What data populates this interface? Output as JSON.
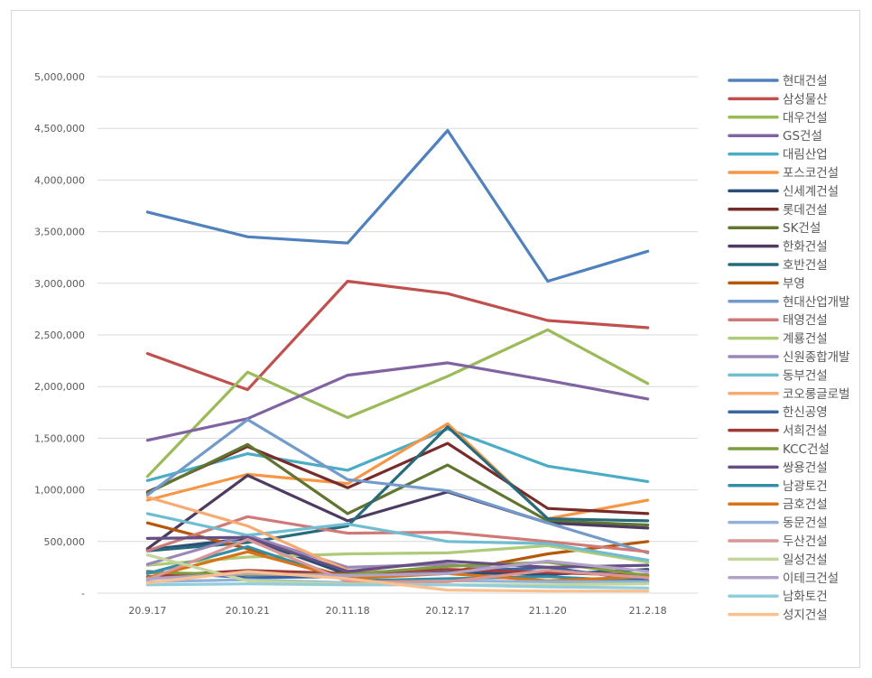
{
  "chart_data": {
    "type": "line",
    "title": "",
    "xlabel": "",
    "ylabel": "",
    "categories": [
      "20.9.17",
      "20.10.21",
      "20.11.18",
      "20.12.17",
      "21.1.20",
      "21.2.18"
    ],
    "ylim": [
      0,
      5000000
    ],
    "yticks": [
      0,
      500000,
      1000000,
      1500000,
      2000000,
      2500000,
      3000000,
      3500000,
      4000000,
      4500000,
      5000000
    ],
    "ytick_labels": [
      "-",
      "500,000",
      "1,000,000",
      "1,500,000",
      "2,000,000",
      "2,500,000",
      "3,000,000",
      "3,500,000",
      "4,000,000",
      "4,500,000",
      "5,000,000"
    ],
    "grid": true,
    "legend_position": "right",
    "series": [
      {
        "name": "현대건설",
        "color": "#4F81BD",
        "values": [
          3690000,
          3450000,
          3390000,
          4480000,
          3020000,
          3310000
        ]
      },
      {
        "name": "삼성물산",
        "color": "#C0504D",
        "values": [
          2320000,
          1970000,
          3020000,
          2900000,
          2640000,
          2570000
        ]
      },
      {
        "name": "대우건설",
        "color": "#9BBB59",
        "values": [
          1130000,
          2140000,
          1700000,
          2100000,
          2550000,
          2030000
        ]
      },
      {
        "name": "GS건설",
        "color": "#8064A2",
        "values": [
          1480000,
          1690000,
          2110000,
          2230000,
          2060000,
          1880000
        ]
      },
      {
        "name": "대림산업",
        "color": "#4BACC6",
        "values": [
          1090000,
          1350000,
          1190000,
          1590000,
          1230000,
          1080000
        ]
      },
      {
        "name": "포스코건설",
        "color": "#F79646",
        "values": [
          900000,
          1150000,
          1060000,
          1640000,
          720000,
          900000
        ]
      },
      {
        "name": "신세계건설",
        "color": "#2C4D75",
        "values": [
          420000,
          530000,
          180000,
          200000,
          180000,
          230000
        ]
      },
      {
        "name": "롯데건설",
        "color": "#772C2A",
        "values": [
          980000,
          1420000,
          1020000,
          1450000,
          820000,
          770000
        ]
      },
      {
        "name": "SK건설",
        "color": "#5F7530",
        "values": [
          970000,
          1440000,
          770000,
          1240000,
          700000,
          660000
        ]
      },
      {
        "name": "한화건설",
        "color": "#4D3B62",
        "values": [
          430000,
          1140000,
          700000,
          980000,
          680000,
          630000
        ]
      },
      {
        "name": "호반건설",
        "color": "#276A7C",
        "values": [
          410000,
          490000,
          650000,
          1610000,
          720000,
          700000
        ]
      },
      {
        "name": "부영",
        "color": "#B65708",
        "values": [
          680000,
          430000,
          150000,
          200000,
          380000,
          500000
        ]
      },
      {
        "name": "현대산업개발",
        "color": "#729ACA",
        "values": [
          950000,
          1680000,
          1100000,
          990000,
          680000,
          390000
        ]
      },
      {
        "name": "태영건설",
        "color": "#D07A78",
        "values": [
          410000,
          740000,
          580000,
          590000,
          500000,
          400000
        ]
      },
      {
        "name": "계룡건설",
        "color": "#AFCA79",
        "values": [
          270000,
          350000,
          380000,
          390000,
          460000,
          300000
        ]
      },
      {
        "name": "신원종합개발",
        "color": "#9B87B7",
        "values": [
          280000,
          560000,
          250000,
          280000,
          200000,
          180000
        ]
      },
      {
        "name": "동부건설",
        "color": "#6FBDD1",
        "values": [
          770000,
          560000,
          670000,
          500000,
          480000,
          320000
        ]
      },
      {
        "name": "코오롱글로벌",
        "color": "#F8AA73",
        "values": [
          930000,
          650000,
          220000,
          190000,
          120000,
          130000
        ]
      },
      {
        "name": "한신공영",
        "color": "#3A66A0",
        "values": [
          210000,
          150000,
          160000,
          200000,
          250000,
          120000
        ]
      },
      {
        "name": "서희건설",
        "color": "#A03B38",
        "values": [
          160000,
          220000,
          190000,
          230000,
          200000,
          170000
        ]
      },
      {
        "name": "KCC건설",
        "color": "#7E9C40",
        "values": [
          200000,
          180000,
          180000,
          260000,
          300000,
          170000
        ]
      },
      {
        "name": "쌍용건설",
        "color": "#664F82",
        "values": [
          530000,
          540000,
          210000,
          310000,
          250000,
          270000
        ]
      },
      {
        "name": "남광토건",
        "color": "#338EA6",
        "values": [
          190000,
          450000,
          120000,
          140000,
          160000,
          110000
        ]
      },
      {
        "name": "금호건설",
        "color": "#D87418",
        "values": [
          150000,
          400000,
          140000,
          190000,
          120000,
          160000
        ]
      },
      {
        "name": "동문건설",
        "color": "#93B1D7",
        "values": [
          110000,
          130000,
          100000,
          120000,
          110000,
          110000
        ]
      },
      {
        "name": "두산건설",
        "color": "#D99694",
        "values": [
          130000,
          520000,
          110000,
          110000,
          220000,
          150000
        ]
      },
      {
        "name": "일성건설",
        "color": "#C3D69B",
        "values": [
          370000,
          120000,
          90000,
          80000,
          80000,
          90000
        ]
      },
      {
        "name": "이테크건설",
        "color": "#B3A2C7",
        "values": [
          140000,
          190000,
          170000,
          190000,
          310000,
          210000
        ]
      },
      {
        "name": "남화토건",
        "color": "#92CDDC",
        "values": [
          80000,
          90000,
          80000,
          80000,
          60000,
          50000
        ]
      },
      {
        "name": "성지건설",
        "color": "#FAC090",
        "values": [
          100000,
          210000,
          140000,
          30000,
          20000,
          20000
        ]
      }
    ]
  }
}
